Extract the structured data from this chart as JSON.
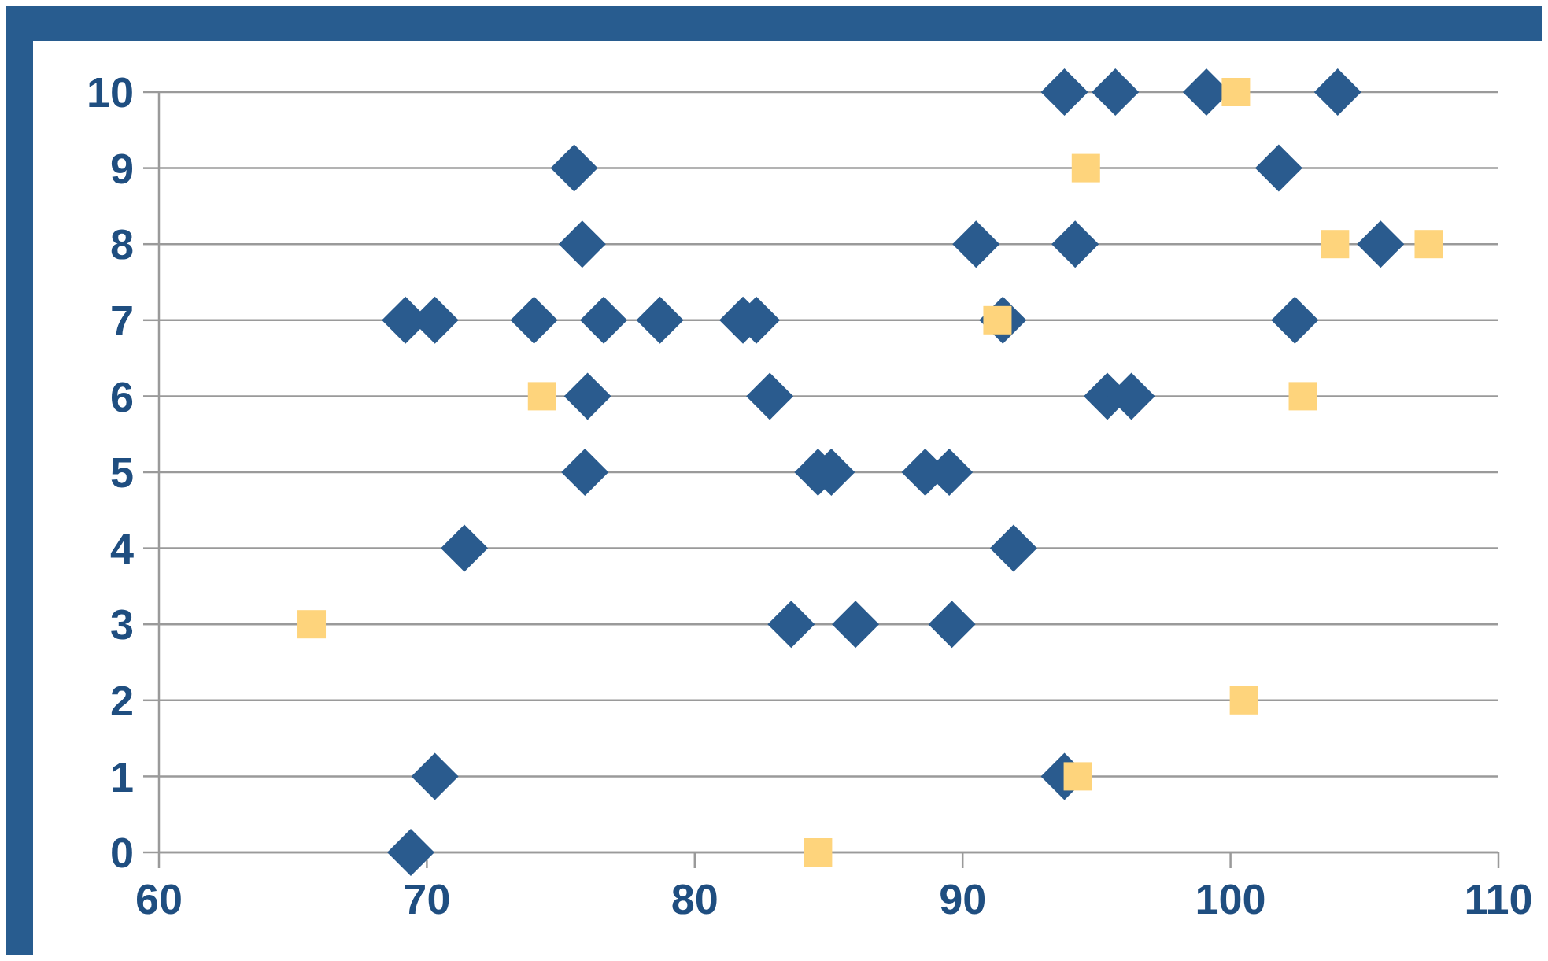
{
  "chart_data": {
    "type": "scatter",
    "xlim": [
      60,
      110
    ],
    "xticks": [
      60,
      70,
      80,
      90,
      100,
      110
    ],
    "ylim": [
      0,
      10
    ],
    "yticks": [
      0,
      1,
      2,
      3,
      4,
      5,
      6,
      7,
      8,
      9,
      10
    ],
    "grid": "y",
    "series": [
      {
        "color": "#2a5b8e",
        "marker": "diamond",
        "x": [
          93.8,
          95.7,
          99.1,
          104.0,
          75.5,
          101.8,
          75.8,
          90.5,
          94.2,
          105.6,
          69.2,
          70.3,
          74.0,
          76.6,
          78.7,
          81.8,
          82.3,
          91.5,
          102.4,
          76.0,
          82.8,
          95.4,
          96.3,
          75.9,
          84.6,
          85.1,
          88.6,
          89.5,
          71.4,
          91.9,
          83.6,
          86.0,
          89.6,
          70.3,
          93.8,
          69.4
        ],
        "values": [
          10,
          10,
          10,
          10,
          9,
          9,
          8,
          8,
          8,
          8,
          7,
          7,
          7,
          7,
          7,
          7,
          7,
          7,
          7,
          6,
          6,
          6,
          6,
          5,
          5,
          5,
          5,
          5,
          4,
          4,
          3,
          3,
          3,
          1,
          1,
          0
        ]
      },
      {
        "color": "#fed47c",
        "marker": "square",
        "x": [
          100.2,
          94.6,
          103.9,
          107.4,
          91.3,
          74.3,
          102.7,
          65.7,
          100.5,
          94.3,
          84.6
        ],
        "values": [
          10,
          9,
          8,
          8,
          7,
          6,
          6,
          3,
          2,
          1,
          0
        ]
      }
    ]
  }
}
